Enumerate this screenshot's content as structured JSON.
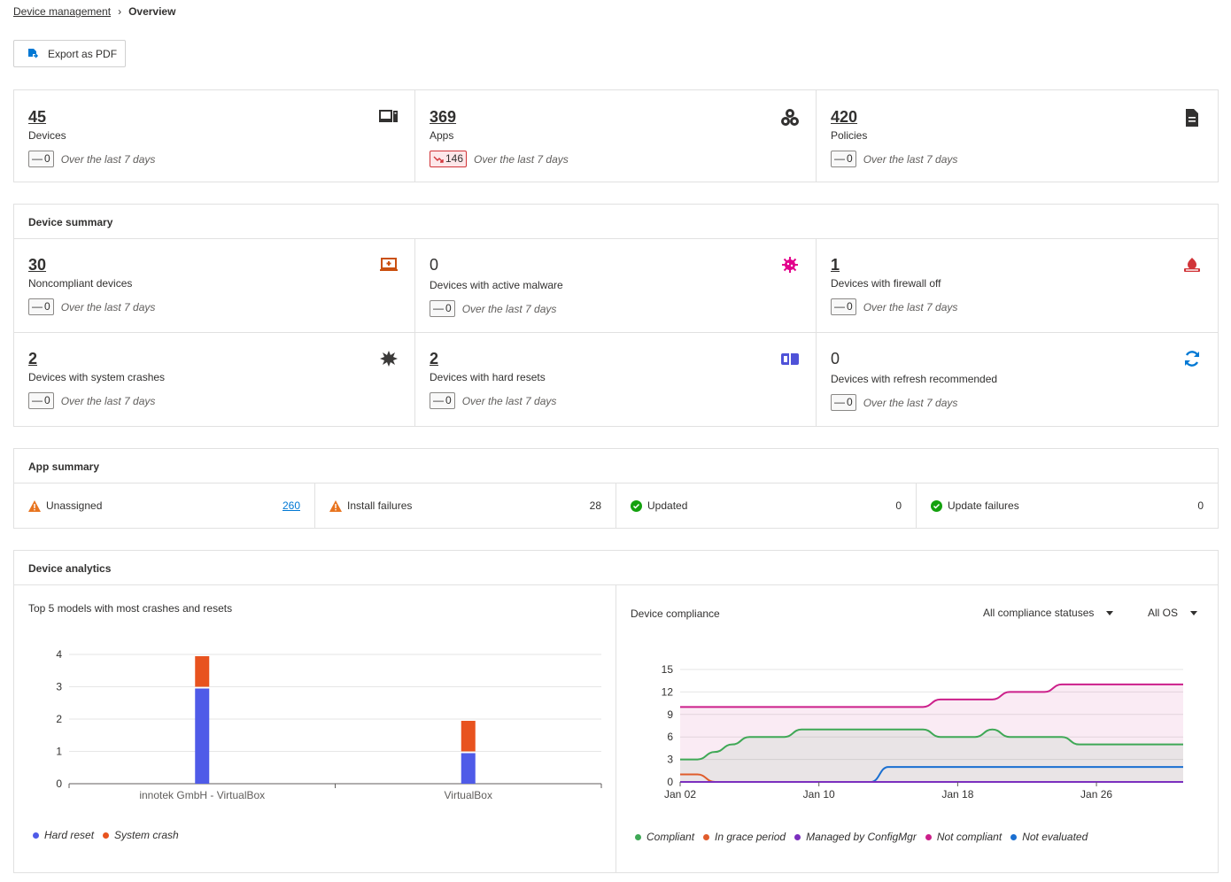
{
  "breadcrumb": {
    "parent": "Device management",
    "current": "Overview"
  },
  "toolbar": {
    "export_label": "Export as PDF"
  },
  "top_tiles": [
    {
      "value": "45",
      "label": "Devices",
      "delta": "0",
      "period": "Over the last 7 days",
      "icon": "devices-icon"
    },
    {
      "value": "369",
      "label": "Apps",
      "delta": "146",
      "period": "Over the last 7 days",
      "icon": "apps-icon",
      "delta_trend": "down"
    },
    {
      "value": "420",
      "label": "Policies",
      "delta": "0",
      "period": "Over the last 7 days",
      "icon": "policy-icon"
    }
  ],
  "device_summary": {
    "title": "Device summary",
    "tiles": [
      {
        "value": "30",
        "label": "Noncompliant devices",
        "delta": "0",
        "period": "Over the last 7 days",
        "icon": "laptop-alert-icon",
        "color": "#ca5010"
      },
      {
        "value": "0",
        "label": "Devices with active malware",
        "delta": "0",
        "period": "Over the last 7 days",
        "icon": "virus-icon",
        "color": "#e3008c"
      },
      {
        "value": "1",
        "label": "Devices with firewall off",
        "delta": "0",
        "period": "Over the last 7 days",
        "icon": "firewall-icon",
        "color": "#d13438"
      },
      {
        "value": "2",
        "label": "Devices with system crashes",
        "delta": "0",
        "period": "Over the last 7 days",
        "icon": "crash-icon",
        "color": "#3b3a39"
      },
      {
        "value": "2",
        "label": "Devices with hard resets",
        "delta": "0",
        "period": "Over the last 7 days",
        "icon": "reset-icon",
        "color": "#4f52d8"
      },
      {
        "value": "0",
        "label": "Devices with refresh recommended",
        "delta": "0",
        "period": "Over the last 7 days",
        "icon": "refresh-icon",
        "color": "#0078d4"
      }
    ]
  },
  "app_summary": {
    "title": "App summary",
    "items": [
      {
        "label": "Unassigned",
        "value": "260",
        "status": "warning"
      },
      {
        "label": "Install failures",
        "value": "28",
        "status": "warning"
      },
      {
        "label": "Updated",
        "value": "0",
        "status": "ok"
      },
      {
        "label": "Update failures",
        "value": "0",
        "status": "ok"
      }
    ]
  },
  "device_analytics": {
    "title": "Device analytics",
    "crash_chart_title": "Top 5 models with most crashes and resets",
    "compliance_title": "Device compliance",
    "filter_status": "All compliance statuses",
    "filter_os": "All OS"
  },
  "colors": {
    "hard_reset": "#4f5be8",
    "system_crash": "#e8531f",
    "compliant": "#3fa856",
    "grace": "#e05c2c",
    "configmgr": "#7b2fbe",
    "not_compliant": "#cc1f8a",
    "not_evaluated": "#1a6fd1"
  },
  "chart_data": [
    {
      "type": "bar",
      "stacked": true,
      "categories": [
        "innotek GmbH - VirtualBox",
        "VirtualBox"
      ],
      "series": [
        {
          "name": "Hard reset",
          "values": [
            3,
            1
          ]
        },
        {
          "name": "System crash",
          "values": [
            1,
            1
          ]
        }
      ],
      "yticks": [
        0,
        1,
        2,
        3,
        4
      ],
      "ylim": [
        0,
        4
      ],
      "legend": "bottom-left"
    },
    {
      "type": "area",
      "x": [
        "Jan 02",
        "Jan 03",
        "Jan 04",
        "Jan 05",
        "Jan 06",
        "Jan 07",
        "Jan 08",
        "Jan 09",
        "Jan 10",
        "Jan 11",
        "Jan 12",
        "Jan 13",
        "Jan 14",
        "Jan 15",
        "Jan 16",
        "Jan 17",
        "Jan 18",
        "Jan 19",
        "Jan 20",
        "Jan 21",
        "Jan 22",
        "Jan 23",
        "Jan 24",
        "Jan 25",
        "Jan 26",
        "Jan 27",
        "Jan 28",
        "Jan 29",
        "Jan 30",
        "Jan 31"
      ],
      "xticks": [
        "Jan 02",
        "Jan 10",
        "Jan 18",
        "Jan 26"
      ],
      "series": [
        {
          "name": "Compliant",
          "values": [
            3,
            3,
            4,
            5,
            6,
            6,
            6,
            7,
            7,
            7,
            7,
            7,
            7,
            7,
            7,
            6,
            6,
            6,
            7,
            6,
            6,
            6,
            6,
            5,
            5,
            5,
            5,
            5,
            5,
            5
          ]
        },
        {
          "name": "In grace period",
          "values": [
            1,
            1,
            0,
            0,
            0,
            0,
            0,
            0,
            0,
            0,
            0,
            0,
            0,
            0,
            0,
            0,
            0,
            0,
            0,
            0,
            0,
            0,
            0,
            0,
            0,
            0,
            0,
            0,
            0,
            0
          ]
        },
        {
          "name": "Managed by ConfigMgr",
          "values": [
            0,
            0,
            0,
            0,
            0,
            0,
            0,
            0,
            0,
            0,
            0,
            0,
            0,
            0,
            0,
            0,
            0,
            0,
            0,
            0,
            0,
            0,
            0,
            0,
            0,
            0,
            0,
            0,
            0,
            0
          ]
        },
        {
          "name": "Not compliant",
          "values": [
            10,
            10,
            10,
            10,
            10,
            10,
            10,
            10,
            10,
            10,
            10,
            10,
            10,
            10,
            10,
            11,
            11,
            11,
            11,
            12,
            12,
            12,
            13,
            13,
            13,
            13,
            13,
            13,
            13,
            13
          ]
        },
        {
          "name": "Not evaluated",
          "values": [
            0,
            0,
            0,
            0,
            0,
            0,
            0,
            0,
            0,
            0,
            0,
            0,
            2,
            2,
            2,
            2,
            2,
            2,
            2,
            2,
            2,
            2,
            2,
            2,
            2,
            2,
            2,
            2,
            2,
            2
          ]
        }
      ],
      "yticks": [
        0,
        3,
        6,
        9,
        12,
        15
      ],
      "ylim": [
        0,
        15
      ],
      "legend": "bottom"
    }
  ]
}
